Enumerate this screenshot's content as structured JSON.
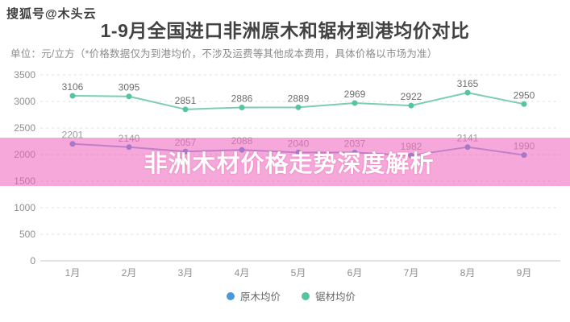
{
  "watermark": "搜狐号@木头云",
  "header": {
    "title": "1-9月全国进口非洲原木和锯材到港均价对比",
    "subtitle": "单位：元/立方（*价格数据仅为到港均价，不涉及运费等其他成本费用，具体价格以市场为准）"
  },
  "overlay_banner": {
    "text": "非洲木材价格走势深度解析",
    "band_color": "rgba(238,97,188,0.55)",
    "text_color": "#ffffff"
  },
  "chart_data": {
    "type": "line",
    "title": "1-9月全国进口非洲原木和锯材到港均价对比",
    "unit_note": "单位：元/立方",
    "categories": [
      "1月",
      "2月",
      "3月",
      "4月",
      "5月",
      "6月",
      "7月",
      "8月",
      "9月"
    ],
    "series": [
      {
        "name": "原木均价",
        "color": "#4c97d9",
        "line_color": "#8aa4d8",
        "label_color": "#9a9a9a",
        "values": [
          2201,
          2140,
          2057,
          2088,
          2040,
          2037,
          1982,
          2141,
          1990
        ]
      },
      {
        "name": "锯材均价",
        "color": "#58c3a3",
        "line_color": "#7ccdb3",
        "label_color": "#6e6e6e",
        "values": [
          3106,
          3095,
          2851,
          2886,
          2889,
          2969,
          2922,
          3165,
          2950
        ]
      }
    ],
    "xlabel": "",
    "ylabel": "",
    "ylim": [
      0,
      3500
    ],
    "ytick_step": 500,
    "grid": "horizontal-dashed",
    "legend_position": "bottom"
  }
}
